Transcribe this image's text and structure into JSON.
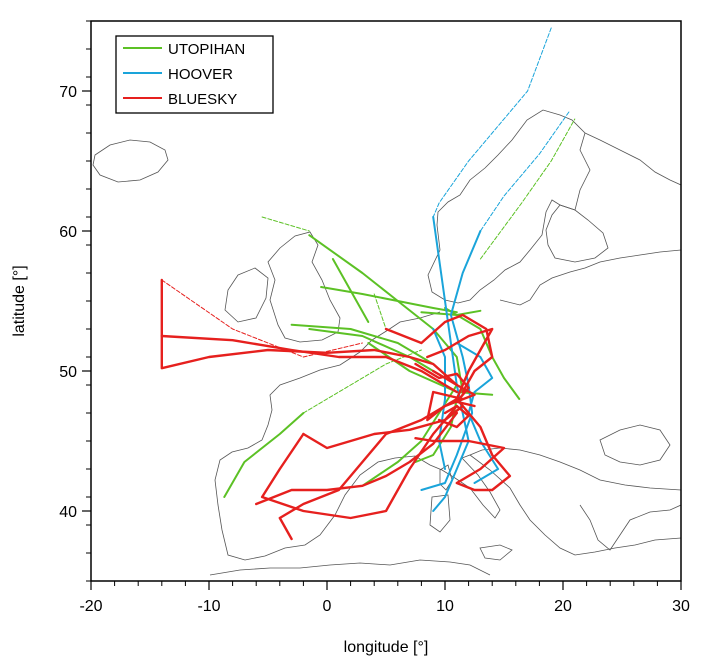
{
  "chart_data": {
    "type": "line",
    "xlabel": "longitude [°]",
    "ylabel": "latitude [°]",
    "xlim": [
      -20,
      30
    ],
    "ylim": [
      35,
      75
    ],
    "xticks": [
      -20,
      -10,
      0,
      10,
      20,
      30
    ],
    "yticks": [
      40,
      50,
      60,
      70
    ],
    "legend_position": "top-left",
    "series": [
      {
        "name": "UTOPIHAN",
        "color": "#5cc125",
        "tracks": [
          {
            "style": "solid",
            "pts": [
              [
                -8.7,
                41.0
              ],
              [
                -7.0,
                43.5
              ],
              [
                -4.0,
                45.5
              ],
              [
                -2.0,
                47.0
              ]
            ]
          },
          {
            "style": "dashed",
            "pts": [
              [
                -2.0,
                47.0
              ],
              [
                2.0,
                49.0
              ],
              [
                5.0,
                50.5
              ],
              [
                8.0,
                51.5
              ]
            ]
          },
          {
            "style": "solid",
            "pts": [
              [
                -3.0,
                53.3
              ],
              [
                2.0,
                53.0
              ],
              [
                6.0,
                52.0
              ],
              [
                9.0,
                50.5
              ],
              [
                11.0,
                49.0
              ]
            ]
          },
          {
            "style": "solid",
            "pts": [
              [
                -1.5,
                53.0
              ],
              [
                3.0,
                52.5
              ],
              [
                7.0,
                51.0
              ],
              [
                10.0,
                49.5
              ]
            ]
          },
          {
            "style": "solid",
            "pts": [
              [
                -0.5,
                56.0
              ],
              [
                3.0,
                55.5
              ],
              [
                6.0,
                55.0
              ],
              [
                9.0,
                54.5
              ],
              [
                11.0,
                54.2
              ]
            ]
          },
          {
            "style": "dashed",
            "pts": [
              [
                -5.5,
                61.0
              ],
              [
                -1.5,
                60.0
              ]
            ]
          },
          {
            "style": "solid",
            "pts": [
              [
                -1.5,
                59.7
              ],
              [
                3.0,
                57.0
              ],
              [
                6.0,
                55.0
              ],
              [
                9.0,
                53.0
              ],
              [
                11.0,
                51.0
              ],
              [
                11.5,
                48.5
              ]
            ]
          },
          {
            "style": "solid",
            "pts": [
              [
                0.5,
                58.0
              ],
              [
                2.5,
                55.0
              ],
              [
                3.5,
                53.5
              ]
            ]
          },
          {
            "style": "solid",
            "pts": [
              [
                3.5,
                52.0
              ],
              [
                7.0,
                50.0
              ],
              [
                11.0,
                48.5
              ],
              [
                14.0,
                48.3
              ]
            ]
          },
          {
            "style": "solid",
            "pts": [
              [
                10.0,
                54.5
              ],
              [
                13.0,
                53.0
              ],
              [
                14.0,
                51.0
              ],
              [
                15.0,
                49.5
              ],
              [
                16.3,
                48.0
              ]
            ]
          },
          {
            "style": "solid",
            "pts": [
              [
                11.0,
                49.0
              ],
              [
                9.5,
                47.0
              ],
              [
                8.0,
                45.0
              ],
              [
                6.0,
                43.5
              ],
              [
                3.0,
                41.8
              ]
            ]
          },
          {
            "style": "solid",
            "pts": [
              [
                11.0,
                48.0
              ],
              [
                10.5,
                46.0
              ],
              [
                9.0,
                44.0
              ],
              [
                7.5,
                43.5
              ]
            ]
          },
          {
            "style": "dashed",
            "pts": [
              [
                13.0,
                58.0
              ],
              [
                16.5,
                62.0
              ],
              [
                19.0,
                65.0
              ],
              [
                21.0,
                68.0
              ]
            ]
          },
          {
            "style": "solid",
            "pts": [
              [
                8.0,
                54.2
              ],
              [
                11.0,
                54.0
              ],
              [
                13.0,
                54.3
              ]
            ]
          },
          {
            "style": "dashed",
            "pts": [
              [
                4.0,
                55.5
              ],
              [
                5.0,
                53.0
              ]
            ]
          }
        ]
      },
      {
        "name": "HOOVER",
        "color": "#1aa4da",
        "tracks": [
          {
            "style": "dashed",
            "pts": [
              [
                19.0,
                74.5
              ],
              [
                17.0,
                70.0
              ],
              [
                14.0,
                67.0
              ],
              [
                12.0,
                65.0
              ],
              [
                9.5,
                62.0
              ],
              [
                9.0,
                61.0
              ]
            ]
          },
          {
            "style": "dashed",
            "pts": [
              [
                20.5,
                68.5
              ],
              [
                18.0,
                65.5
              ],
              [
                15.0,
                62.5
              ],
              [
                13.0,
                60.0
              ]
            ]
          },
          {
            "style": "solid",
            "pts": [
              [
                9.0,
                61.0
              ],
              [
                9.5,
                58.0
              ],
              [
                10.0,
                55.0
              ],
              [
                10.5,
                52.0
              ],
              [
                11.0,
                49.0
              ],
              [
                11.5,
                47.0
              ],
              [
                12.0,
                45.0
              ],
              [
                11.0,
                43.0
              ],
              [
                10.0,
                41.0
              ],
              [
                9.0,
                40.0
              ]
            ]
          },
          {
            "style": "solid",
            "pts": [
              [
                13.0,
                60.0
              ],
              [
                11.5,
                57.0
              ],
              [
                10.5,
                54.0
              ],
              [
                11.5,
                51.0
              ],
              [
                12.0,
                49.0
              ],
              [
                12.3,
                47.0
              ],
              [
                11.0,
                44.0
              ],
              [
                10.0,
                42.0
              ],
              [
                8.0,
                41.5
              ]
            ]
          },
          {
            "style": "solid",
            "pts": [
              [
                11.0,
                52.0
              ],
              [
                13.0,
                51.0
              ],
              [
                14.0,
                49.5
              ],
              [
                12.5,
                48.5
              ],
              [
                12.0,
                47.0
              ],
              [
                13.0,
                45.0
              ],
              [
                14.5,
                43.0
              ],
              [
                12.5,
                42.0
              ]
            ]
          },
          {
            "style": "solid",
            "pts": [
              [
                9.0,
                53.0
              ],
              [
                10.0,
                51.0
              ],
              [
                10.0,
                48.0
              ],
              [
                9.5,
                45.0
              ],
              [
                10.0,
                43.0
              ]
            ]
          }
        ]
      },
      {
        "name": "BLUESKY",
        "color": "#e6201e",
        "tracks": [
          {
            "style": "solid",
            "pts": [
              [
                -14.0,
                56.5
              ],
              [
                -14.0,
                53.0
              ],
              [
                -14.0,
                50.2
              ],
              [
                -10.0,
                51.0
              ],
              [
                -5.0,
                51.5
              ],
              [
                0.0,
                51.3
              ],
              [
                4.0,
                51.5
              ],
              [
                7.0,
                51.0
              ],
              [
                9.0,
                50.5
              ],
              [
                11.0,
                49.0
              ]
            ]
          },
          {
            "style": "solid",
            "pts": [
              [
                -14.0,
                52.5
              ],
              [
                -8.0,
                52.2
              ],
              [
                -3.0,
                51.5
              ],
              [
                1.0,
                51.0
              ],
              [
                5.0,
                51.0
              ],
              [
                8.0,
                50.0
              ],
              [
                11.0,
                48.5
              ]
            ]
          },
          {
            "style": "dashed",
            "pts": [
              [
                -14.0,
                56.5
              ],
              [
                -8.0,
                53.0
              ],
              [
                -2.0,
                51.0
              ],
              [
                3.0,
                52.0
              ]
            ]
          },
          {
            "style": "solid",
            "pts": [
              [
                -2.0,
                45.5
              ],
              [
                -4.0,
                43.0
              ],
              [
                -5.5,
                41.0
              ],
              [
                -2.0,
                40.0
              ],
              [
                2.0,
                39.5
              ],
              [
                5.0,
                40.0
              ],
              [
                7.0,
                43.0
              ],
              [
                9.0,
                45.5
              ],
              [
                11.0,
                47.5
              ]
            ]
          },
          {
            "style": "solid",
            "pts": [
              [
                -2.0,
                45.5
              ],
              [
                0.0,
                44.5
              ],
              [
                2.0,
                45.0
              ],
              [
                4.0,
                45.5
              ],
              [
                7.0,
                45.8
              ],
              [
                10.0,
                46.5
              ],
              [
                11.5,
                47.5
              ]
            ]
          },
          {
            "style": "solid",
            "pts": [
              [
                -6.0,
                40.5
              ],
              [
                -3.0,
                41.5
              ],
              [
                0.0,
                41.5
              ],
              [
                3.0,
                41.8
              ],
              [
                5.0,
                42.5
              ],
              [
                7.0,
                43.5
              ],
              [
                9.0,
                44.8
              ],
              [
                11.0,
                47.0
              ]
            ]
          },
          {
            "style": "solid",
            "pts": [
              [
                -3.0,
                38.0
              ],
              [
                -4.0,
                39.5
              ],
              [
                -2.0,
                40.5
              ],
              [
                1.0,
                41.5
              ],
              [
                3.0,
                43.5
              ],
              [
                5.0,
                45.5
              ],
              [
                8.0,
                46.5
              ],
              [
                11.0,
                48.0
              ]
            ]
          },
          {
            "style": "solid",
            "pts": [
              [
                11.0,
                48.0
              ],
              [
                13.0,
                46.0
              ],
              [
                14.0,
                44.0
              ],
              [
                15.5,
                42.5
              ],
              [
                14.0,
                41.5
              ],
              [
                12.5,
                41.5
              ],
              [
                11.0,
                42.0
              ],
              [
                13.0,
                43.0
              ],
              [
                15.0,
                44.5
              ],
              [
                12.0,
                45.0
              ],
              [
                9.0,
                45.0
              ],
              [
                7.5,
                45.2
              ]
            ]
          },
          {
            "style": "solid",
            "pts": [
              [
                5.0,
                53.0
              ],
              [
                8.0,
                52.0
              ],
              [
                10.0,
                53.5
              ],
              [
                11.5,
                54.0
              ],
              [
                13.5,
                53.0
              ],
              [
                14.0,
                51.0
              ],
              [
                12.5,
                50.0
              ],
              [
                11.5,
                48.5
              ]
            ]
          },
          {
            "style": "solid",
            "pts": [
              [
                8.5,
                51.0
              ],
              [
                10.0,
                51.5
              ],
              [
                12.0,
                52.5
              ],
              [
                14.0,
                53.0
              ],
              [
                12.0,
                50.0
              ],
              [
                11.0,
                48.0
              ]
            ]
          },
          {
            "style": "solid",
            "pts": [
              [
                9.0,
                50.0
              ],
              [
                11.0,
                49.0
              ],
              [
                12.5,
                48.3
              ],
              [
                10.0,
                47.5
              ],
              [
                8.5,
                46.5
              ],
              [
                9.0,
                48.5
              ],
              [
                11.5,
                48.0
              ]
            ]
          },
          {
            "style": "solid",
            "pts": [
              [
                7.5,
                50.5
              ],
              [
                9.5,
                49.5
              ],
              [
                11.0,
                49.8
              ],
              [
                12.0,
                48.8
              ],
              [
                11.0,
                47.8
              ],
              [
                12.5,
                47.5
              ]
            ]
          },
          {
            "style": "solid",
            "pts": [
              [
                9.5,
                46.5
              ],
              [
                11.0,
                46.0
              ],
              [
                12.0,
                46.8
              ],
              [
                11.0,
                47.5
              ],
              [
                10.0,
                47.0
              ]
            ]
          }
        ]
      }
    ]
  }
}
